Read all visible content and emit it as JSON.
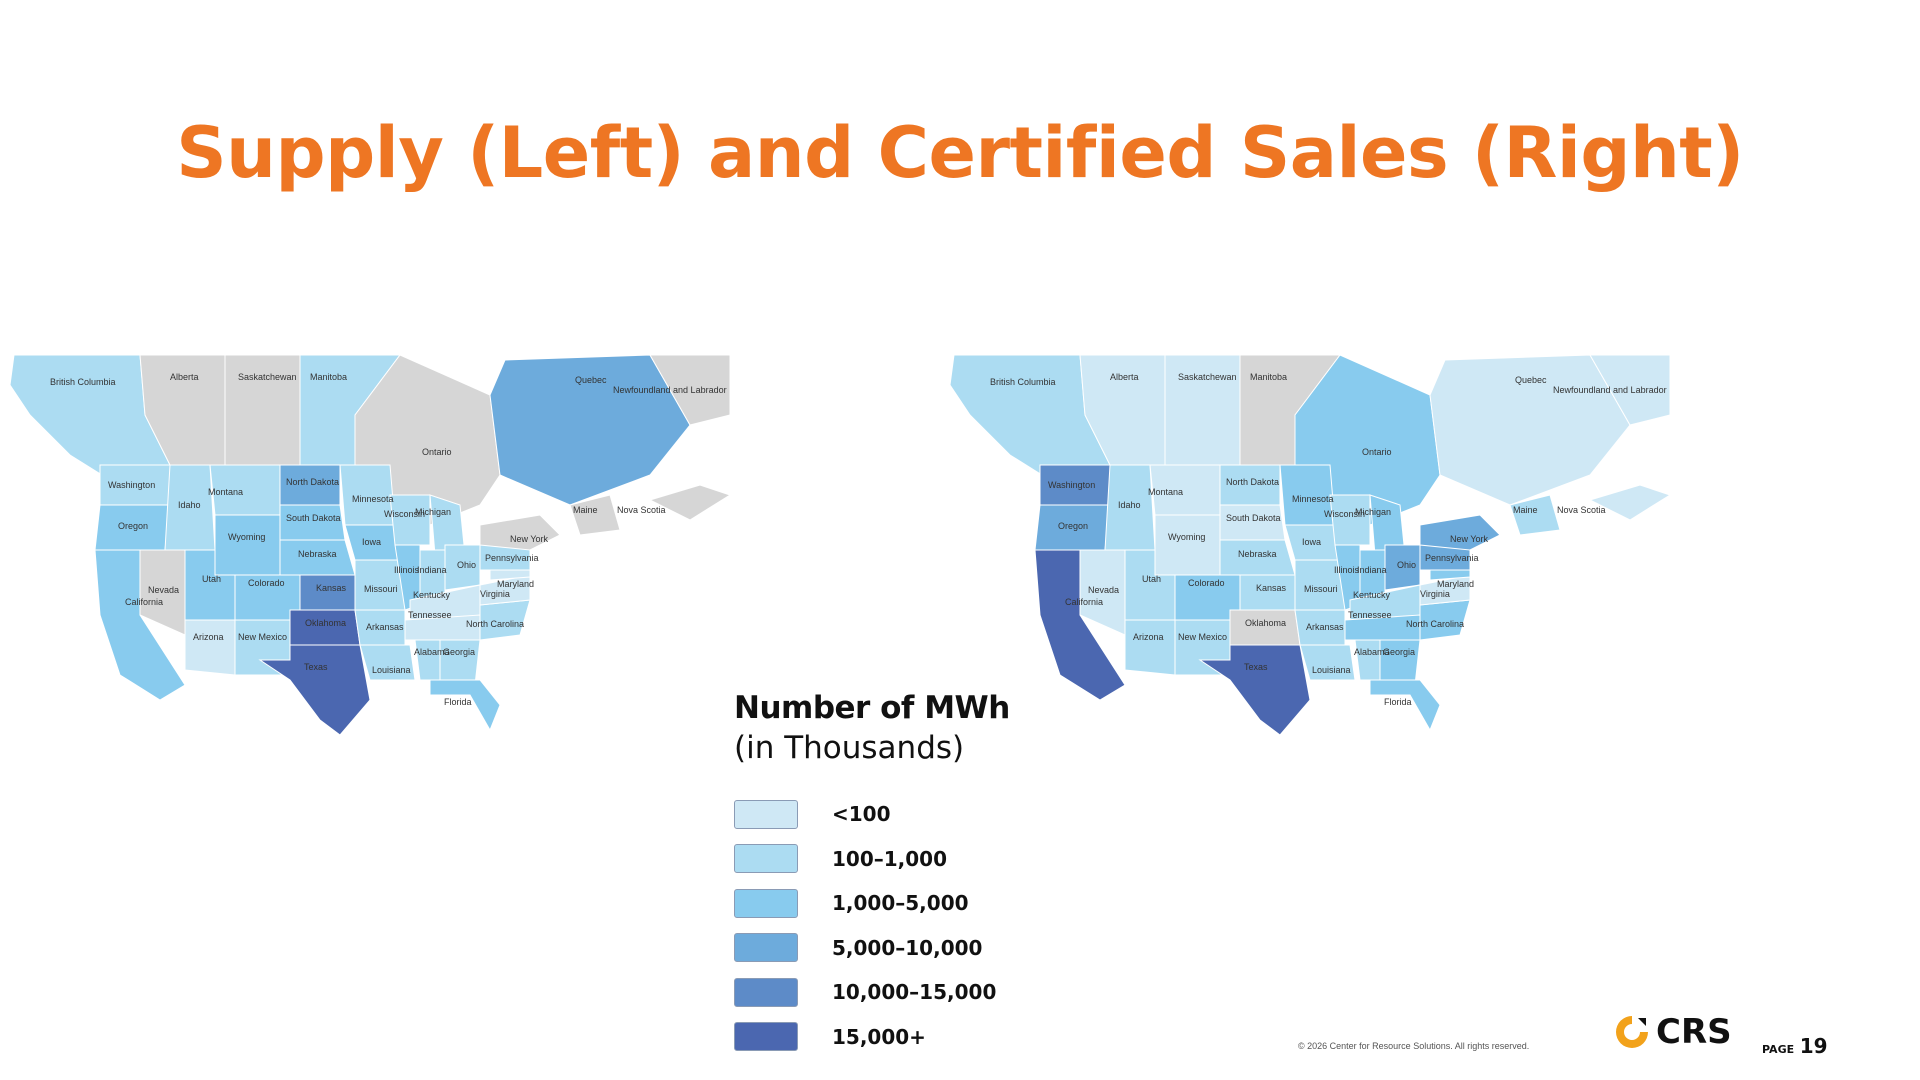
{
  "title": "Supply (Left) and Certified Sales (Right)",
  "colors": {
    "title": "#ee7623",
    "bin_1": "#cfe8f5",
    "bin_2": "#acdcf2",
    "bin_3": "#88cbee",
    "bin_4": "#6dabdc",
    "bin_5": "#5d8bc8",
    "bin_6": "#4b67b0",
    "no_data": "#d6d6d6",
    "logo_accent": "#f2a21b"
  },
  "legend": {
    "title": "Number of MWh",
    "subtitle": "(in Thousands)",
    "bins": [
      {
        "label": "<100",
        "color": "#cfe8f5"
      },
      {
        "label": "100–1,000",
        "color": "#acdcf2"
      },
      {
        "label": "1,000–5,000",
        "color": "#88cbee"
      },
      {
        "label": "5,000–10,000",
        "color": "#6dabdc"
      },
      {
        "label": "10,000–15,000",
        "color": "#5d8bc8"
      },
      {
        "label": "15,000+",
        "color": "#4b67b0"
      }
    ]
  },
  "maps": {
    "left": {
      "British Columbia": 2,
      "Alberta": 0,
      "Saskatchewan": 0,
      "Manitoba": 2,
      "Ontario": 0,
      "Quebec": 4,
      "Newfoundland and Labrador": 0,
      "Maine": 0,
      "Nova Scotia": 0,
      "Washington": 2,
      "Oregon": 3,
      "California": 3,
      "Nevada": 0,
      "Idaho": 2,
      "Montana": 2,
      "Wyoming": 3,
      "Utah": 3,
      "Colorado": 3,
      "Arizona": 1,
      "New Mexico": 2,
      "North Dakota": 4,
      "South Dakota": 3,
      "Nebraska": 3,
      "Kansas": 5,
      "Oklahoma": 6,
      "Texas": 6,
      "Minnesota": 2,
      "Iowa": 3,
      "Missouri": 2,
      "Arkansas": 2,
      "Louisiana": 2,
      "Wisconsin": 2,
      "Illinois": 3,
      "Michigan": 2,
      "Indiana": 2,
      "Ohio": 2,
      "Kentucky": 1,
      "Tennessee": 1,
      "Alabama": 2,
      "Georgia": 2,
      "Florida": 3,
      "North Carolina": 2,
      "Virginia": 1,
      "Maryland": 1,
      "Pennsylvania": 2,
      "New York": 0
    },
    "right": {
      "British Columbia": 2,
      "Alberta": 1,
      "Saskatchewan": 1,
      "Manitoba": 0,
      "Ontario": 3,
      "Quebec": 1,
      "Newfoundland and Labrador": 1,
      "Maine": 2,
      "Nova Scotia": 1,
      "Washington": 5,
      "Oregon": 4,
      "California": 6,
      "Nevada": 1,
      "Idaho": 2,
      "Montana": 1,
      "Wyoming": 1,
      "Utah": 2,
      "Colorado": 3,
      "Arizona": 2,
      "New Mexico": 2,
      "North Dakota": 2,
      "South Dakota": 1,
      "Nebraska": 2,
      "Kansas": 2,
      "Oklahoma": 0,
      "Texas": 6,
      "Minnesota": 3,
      "Iowa": 2,
      "Missouri": 2,
      "Arkansas": 2,
      "Louisiana": 2,
      "Wisconsin": 2,
      "Illinois": 3,
      "Michigan": 3,
      "Indiana": 3,
      "Ohio": 4,
      "Kentucky": 2,
      "Tennessee": 3,
      "Alabama": 2,
      "Georgia": 3,
      "Florida": 3,
      "North Carolina": 3,
      "Virginia": 1,
      "Maryland": 3,
      "Pennsylvania": 4,
      "New York": 4
    }
  },
  "footer": {
    "copyright": "© 2026 Center for Resource Solutions. All rights reserved.",
    "logo_text": "CRS",
    "page_word": "PAGE",
    "page_number": "19"
  }
}
